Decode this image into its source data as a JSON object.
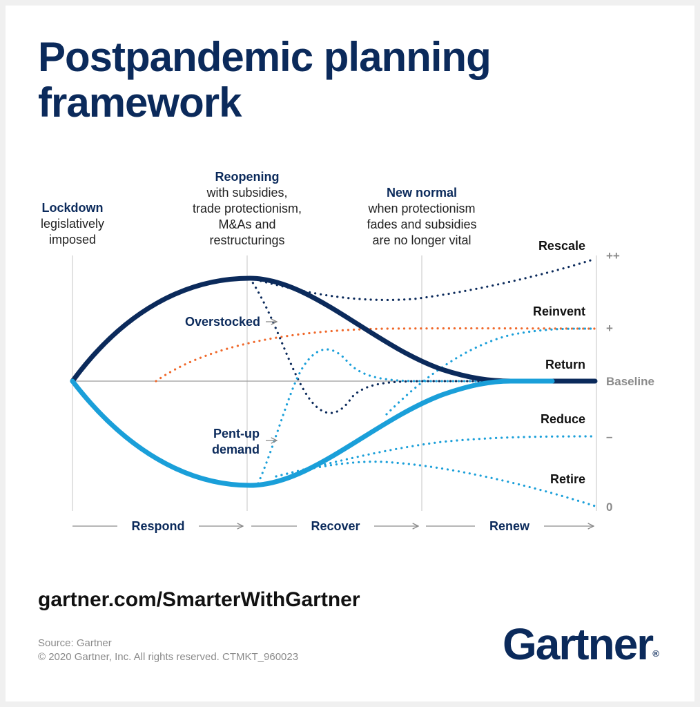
{
  "title": {
    "line1": "Postpandemic planning",
    "line2": "framework"
  },
  "phases": {
    "lockdown": {
      "heading": "Lockdown",
      "lines": [
        "legislatively",
        "imposed"
      ]
    },
    "reopening": {
      "heading": "Reopening",
      "lines": [
        "with subsidies,",
        "trade protectionism,",
        "M&As and",
        "restructurings"
      ]
    },
    "new_normal": {
      "heading": "New normal",
      "lines": [
        "when protectionism",
        "fades and subsidies",
        "are no longer vital"
      ]
    }
  },
  "paths": {
    "rescale": "Rescale",
    "reinvent": "Reinvent",
    "return": "Return",
    "reduce": "Reduce",
    "retire": "Retire"
  },
  "levels": {
    "double_plus": "++",
    "plus": "+",
    "baseline": "Baseline",
    "minus": "–",
    "zero": "0"
  },
  "annotations": {
    "overstocked": "Overstocked",
    "pentup_line1": "Pent-up",
    "pentup_line2": "demand"
  },
  "stages": [
    "Respond",
    "Recover",
    "Renew"
  ],
  "footer": {
    "url": "gartner.com/SmarterWithGartner",
    "source": "Source: Gartner",
    "copyright": "© 2020 Gartner, Inc. All rights reserved. CTMKT_960023",
    "logo": "Gartner",
    "logo_mark": "®"
  },
  "colors": {
    "navy": "#0b2a5b",
    "light_blue": "#1a9fd9",
    "orange": "#f0682a",
    "grey": "#8a8a8a"
  }
}
